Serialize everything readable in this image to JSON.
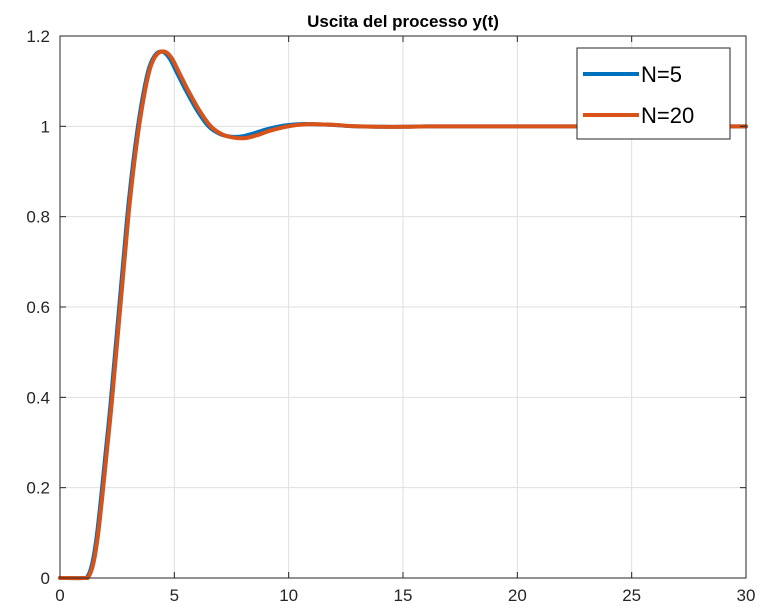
{
  "chart_data": {
    "type": "line",
    "title": "Uscita del processo y(t)",
    "xlabel": "",
    "ylabel": "",
    "xlim": [
      0,
      30
    ],
    "ylim": [
      0,
      1.2
    ],
    "xticks": [
      0,
      5,
      10,
      15,
      20,
      25,
      30
    ],
    "yticks": [
      0,
      0.2,
      0.4,
      0.6,
      0.8,
      1,
      1.2
    ],
    "xtick_labels": [
      "0",
      "5",
      "10",
      "15",
      "20",
      "25",
      "30"
    ],
    "ytick_labels": [
      "0",
      "0.2",
      "0.4",
      "0.6",
      "0.8",
      "1",
      "1.2"
    ],
    "grid": true,
    "legend_position": "top-right",
    "series": [
      {
        "name": "N=5",
        "color": "#0072BD",
        "x": [
          0,
          1.0,
          1.2,
          1.4,
          1.6,
          1.8,
          2.0,
          2.2,
          2.5,
          2.8,
          3.0,
          3.3,
          3.6,
          3.9,
          4.2,
          4.5,
          4.8,
          5.1,
          5.5,
          6.0,
          6.5,
          7.0,
          7.5,
          8.0,
          8.5,
          9.0,
          9.5,
          10.0,
          10.5,
          11.0,
          11.5,
          12.0,
          12.5,
          13.0,
          14.0,
          15.0,
          16.0,
          18.0,
          20.0,
          25.0,
          30.0
        ],
        "y": [
          0,
          0,
          0.003,
          0.03,
          0.09,
          0.18,
          0.28,
          0.38,
          0.55,
          0.72,
          0.83,
          0.96,
          1.06,
          1.13,
          1.16,
          1.165,
          1.15,
          1.12,
          1.08,
          1.035,
          1.0,
          0.983,
          0.977,
          0.978,
          0.985,
          0.993,
          0.999,
          1.003,
          1.005,
          1.005,
          1.004,
          1.003,
          1.001,
          1.0,
          0.999,
          0.999,
          1.0,
          1.0,
          1.0,
          1.0,
          1.0
        ]
      },
      {
        "name": "N=20",
        "color": "#D95319",
        "x": [
          0,
          1.05,
          1.25,
          1.45,
          1.65,
          1.85,
          2.05,
          2.25,
          2.55,
          2.85,
          3.05,
          3.35,
          3.65,
          3.95,
          4.25,
          4.6,
          4.9,
          5.2,
          5.6,
          6.1,
          6.6,
          7.1,
          7.6,
          8.1,
          8.6,
          9.1,
          9.6,
          10.1,
          10.6,
          11.1,
          11.6,
          12.1,
          12.6,
          13.1,
          14.1,
          15.1,
          16.1,
          18.0,
          20.0,
          25.0,
          30.0
        ],
        "y": [
          0,
          0,
          0.003,
          0.03,
          0.09,
          0.18,
          0.28,
          0.38,
          0.55,
          0.72,
          0.83,
          0.96,
          1.06,
          1.13,
          1.16,
          1.165,
          1.15,
          1.12,
          1.08,
          1.035,
          1.0,
          0.982,
          0.975,
          0.974,
          0.98,
          0.989,
          0.996,
          1.001,
          1.004,
          1.005,
          1.004,
          1.003,
          1.001,
          1.0,
          0.999,
          0.999,
          1.0,
          1.0,
          1.0,
          1.0,
          1.0
        ]
      }
    ]
  }
}
